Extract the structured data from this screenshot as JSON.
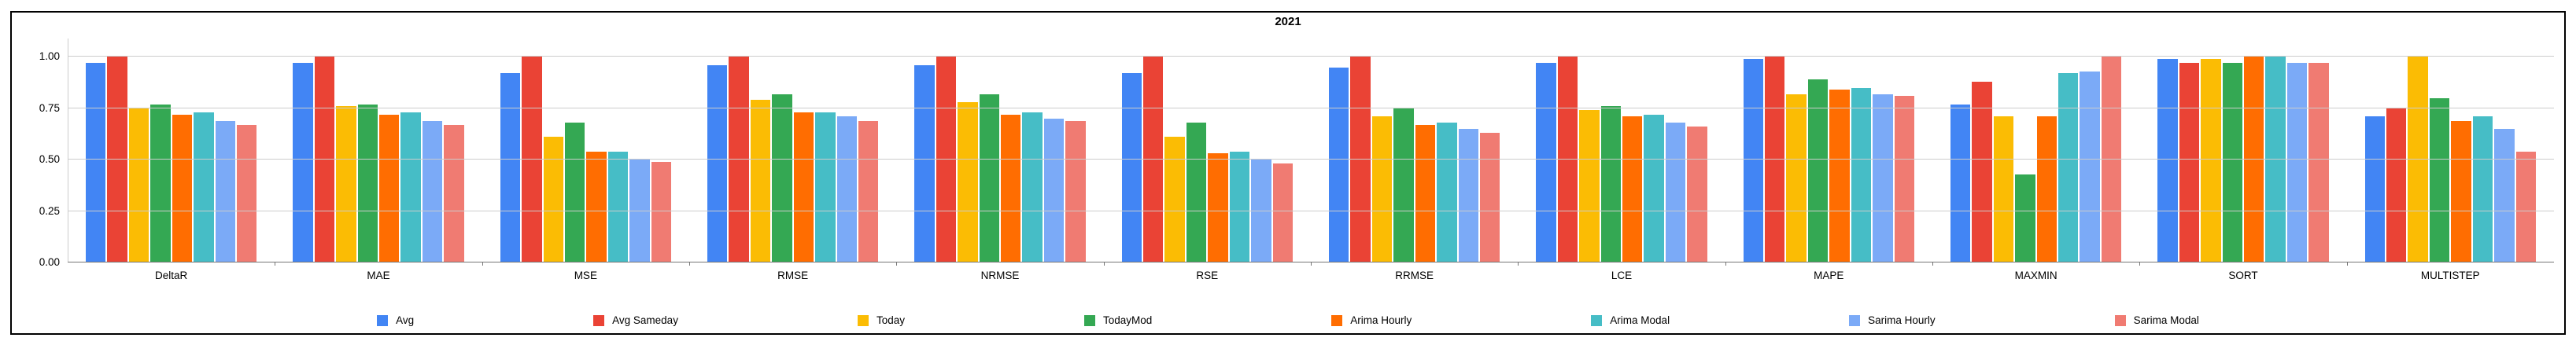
{
  "chart_data": {
    "type": "bar",
    "title": "2021",
    "categories": [
      "DeltaR",
      "MAE",
      "MSE",
      "RMSE",
      "NRMSE",
      "RSE",
      "RRMSE",
      "LCE",
      "MAPE",
      "MAXMIN",
      "SORT",
      "MULTISTEP"
    ],
    "series": [
      {
        "name": "Avg",
        "color": "#4285f4",
        "values": [
          0.97,
          0.97,
          0.92,
          0.96,
          0.96,
          0.92,
          0.95,
          0.97,
          0.99,
          0.77,
          0.99,
          0.71
        ]
      },
      {
        "name": "Avg Sameday",
        "color": "#ea4335",
        "values": [
          1.0,
          1.0,
          1.0,
          1.0,
          1.0,
          1.0,
          1.0,
          1.0,
          1.0,
          0.88,
          0.97,
          0.75
        ]
      },
      {
        "name": "Today",
        "color": "#fbbc04",
        "values": [
          0.75,
          0.76,
          0.61,
          0.79,
          0.78,
          0.61,
          0.71,
          0.74,
          0.82,
          0.71,
          0.99,
          1.0
        ]
      },
      {
        "name": "TodayMod",
        "color": "#34a853",
        "values": [
          0.77,
          0.77,
          0.68,
          0.82,
          0.82,
          0.68,
          0.75,
          0.76,
          0.89,
          0.43,
          0.97,
          0.8
        ]
      },
      {
        "name": "Arima Hourly",
        "color": "#ff6d01",
        "values": [
          0.72,
          0.72,
          0.54,
          0.73,
          0.72,
          0.53,
          0.67,
          0.71,
          0.84,
          0.71,
          1.0,
          0.69
        ]
      },
      {
        "name": "Arima Modal",
        "color": "#46bdc6",
        "values": [
          0.73,
          0.73,
          0.54,
          0.73,
          0.73,
          0.54,
          0.68,
          0.72,
          0.85,
          0.92,
          1.0,
          0.71
        ]
      },
      {
        "name": "Sarima Hourly",
        "color": "#7baaf7",
        "values": [
          0.69,
          0.69,
          0.5,
          0.71,
          0.7,
          0.5,
          0.65,
          0.68,
          0.82,
          0.93,
          0.97,
          0.65
        ]
      },
      {
        "name": "Sarima Modal",
        "color": "#f07b72",
        "values": [
          0.67,
          0.67,
          0.49,
          0.69,
          0.69,
          0.48,
          0.63,
          0.66,
          0.81,
          1.0,
          0.97,
          0.54
        ]
      }
    ],
    "ylim": [
      0,
      1.0
    ],
    "yticks": [
      0,
      0.25,
      0.5,
      0.75,
      1.0
    ],
    "ytick_labels": [
      "0.00",
      "0.25",
      "0.50",
      "0.75",
      "1.00"
    ],
    "grid": true,
    "legend_position": "bottom"
  },
  "colors": {
    "grid": "#cccccc",
    "axis_line": "#757575",
    "text": "#000000",
    "frame_border": "#000000",
    "background": "#ffffff"
  }
}
